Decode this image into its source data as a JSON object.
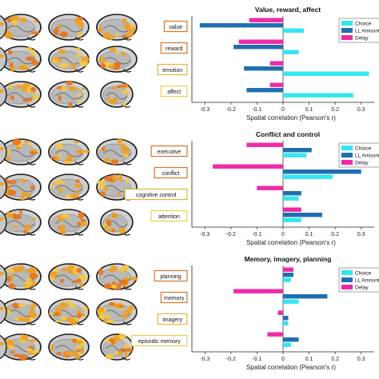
{
  "colors": {
    "choice": "#33e6f2",
    "ll_amount": "#1f6fb0",
    "delay": "#ef2aa8",
    "box_border": [
      "#d9742b",
      "#d9742b",
      "#e8b33a",
      "#e8d24a"
    ]
  },
  "legend": [
    "Choice",
    "LL Amount",
    "Delay"
  ],
  "icons": [
    "brain-slice-icon"
  ],
  "chart_data": [
    {
      "type": "bar",
      "orientation": "horizontal",
      "title": "Value, reward, affect",
      "xlabel": "Spatial correlation (Pearson's r)",
      "xlim": [
        -0.35,
        0.35
      ],
      "xticks": [
        -0.3,
        -0.2,
        -0.1,
        0,
        0.1,
        0.2,
        0.3
      ],
      "categories": [
        "value",
        "reward",
        "emotion",
        "affect"
      ],
      "series": [
        {
          "name": "Choice",
          "values": [
            0.08,
            0.06,
            0.33,
            0.27
          ]
        },
        {
          "name": "LL Amount",
          "values": [
            -0.32,
            -0.19,
            -0.15,
            -0.14
          ]
        },
        {
          "name": "Delay",
          "values": [
            -0.13,
            -0.17,
            -0.05,
            -0.05
          ]
        }
      ]
    },
    {
      "type": "bar",
      "orientation": "horizontal",
      "title": "Conflict and control",
      "xlabel": "Spatial correlation (Pearson's r)",
      "xlim": [
        -0.35,
        0.35
      ],
      "xticks": [
        -0.3,
        -0.2,
        -0.1,
        0,
        0.1,
        0.2,
        0.3
      ],
      "categories": [
        "executive",
        "conflict",
        "cognitive control",
        "attention"
      ],
      "series": [
        {
          "name": "Choice",
          "values": [
            0.09,
            0.19,
            0.06,
            0.07
          ]
        },
        {
          "name": "LL Amount",
          "values": [
            0.11,
            0.3,
            0.07,
            0.15
          ]
        },
        {
          "name": "Delay",
          "values": [
            -0.14,
            -0.27,
            -0.1,
            0.07
          ]
        }
      ]
    },
    {
      "type": "bar",
      "orientation": "horizontal",
      "title": "Memory, imagery, planning",
      "xlabel": "Spatial correlation (Pearson's r)",
      "xlim": [
        -0.35,
        0.35
      ],
      "xticks": [
        -0.3,
        -0.2,
        -0.1,
        0,
        0.1,
        0.2,
        0.3
      ],
      "categories": [
        "planning",
        "memory",
        "imagery",
        "episodic memory"
      ],
      "series": [
        {
          "name": "Choice",
          "values": [
            0.03,
            0.06,
            0.02,
            0.03
          ]
        },
        {
          "name": "LL Amount",
          "values": [
            0.04,
            0.17,
            0.02,
            0.06
          ]
        },
        {
          "name": "Delay",
          "values": [
            0.04,
            -0.19,
            -0.02,
            -0.06
          ]
        }
      ]
    }
  ]
}
